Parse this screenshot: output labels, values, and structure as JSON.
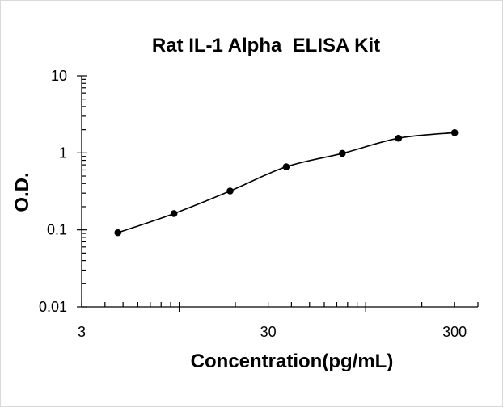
{
  "chart_data": {
    "type": "scatter",
    "title": "Rat IL-1 Alpha  ELISA Kit",
    "xlabel": "Concentration(pg/mL)",
    "ylabel": "O.D.",
    "x_scale": "log",
    "y_scale": "log",
    "xlim": [
      3,
      400
    ],
    "ylim": [
      0.01,
      10
    ],
    "x_ticks": [
      3,
      30,
      300
    ],
    "y_ticks": [
      10,
      1,
      0.1,
      0.01
    ],
    "x_tick_labels": [
      "3",
      "30",
      "300"
    ],
    "y_tick_labels": [
      "10",
      "1",
      "0.1",
      "0.01"
    ],
    "grid": false,
    "legend": "none",
    "series": [
      {
        "x": [
          4.69,
          9.38,
          18.75,
          37.5,
          75,
          150,
          300
        ],
        "y": [
          0.092,
          0.163,
          0.32,
          0.66,
          0.985,
          1.55,
          1.83
        ]
      }
    ],
    "fit_curve": true,
    "colors": {
      "marker": "#000000",
      "line": "#000000",
      "background": "#ffffff",
      "border": "#d9d9d9"
    }
  }
}
